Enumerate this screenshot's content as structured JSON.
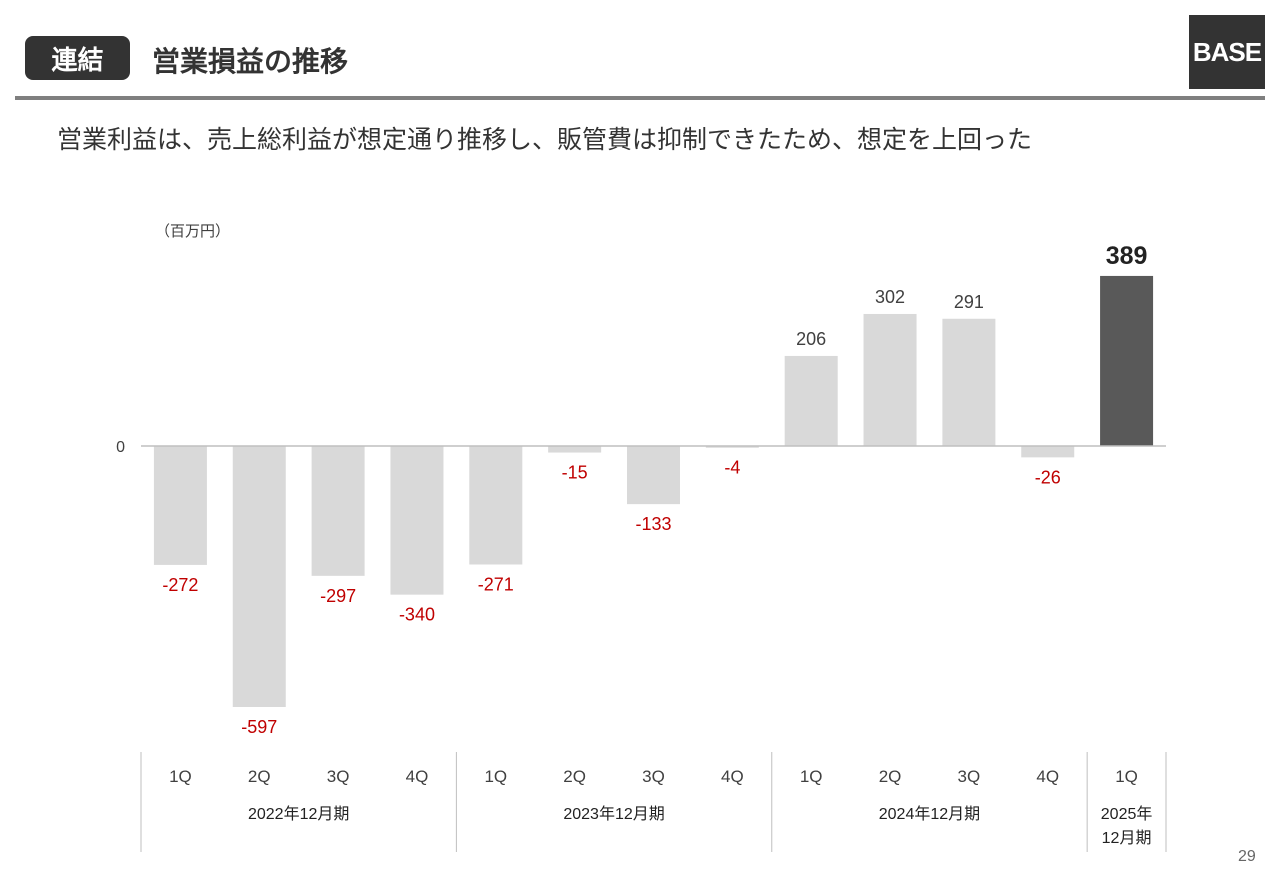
{
  "header": {
    "badge": "連結",
    "title": "営業損益の推移",
    "logo": "BASE"
  },
  "subtitle": "営業利益は、売上総利益が想定通り推移し、販管費は抑制できたため、想定を上回った",
  "page_number": "29",
  "colors": {
    "bar": "#d9d9d9",
    "highlight_bar": "#595959",
    "negative_label": "#c00000",
    "positive_label": "#404040",
    "axis": "#bfbfbf"
  },
  "chart_data": {
    "type": "bar",
    "unit_label": "（百万円）",
    "zero_label": "0",
    "quarter_labels": [
      "1Q",
      "2Q",
      "3Q",
      "4Q",
      "1Q",
      "2Q",
      "3Q",
      "4Q",
      "1Q",
      "2Q",
      "3Q",
      "4Q",
      "1Q"
    ],
    "groups": [
      {
        "label": [
          "2022年12月期"
        ],
        "count": 4
      },
      {
        "label": [
          "2023年12月期"
        ],
        "count": 4
      },
      {
        "label": [
          "2024年12月期"
        ],
        "count": 4
      },
      {
        "label": [
          "2025年",
          "12月期"
        ],
        "count": 1
      }
    ],
    "values": [
      -272,
      -597,
      -297,
      -340,
      -271,
      -15,
      -133,
      -4,
      206,
      302,
      291,
      -26,
      389
    ],
    "highlight_index": 12,
    "ylim": [
      -597,
      389
    ]
  }
}
